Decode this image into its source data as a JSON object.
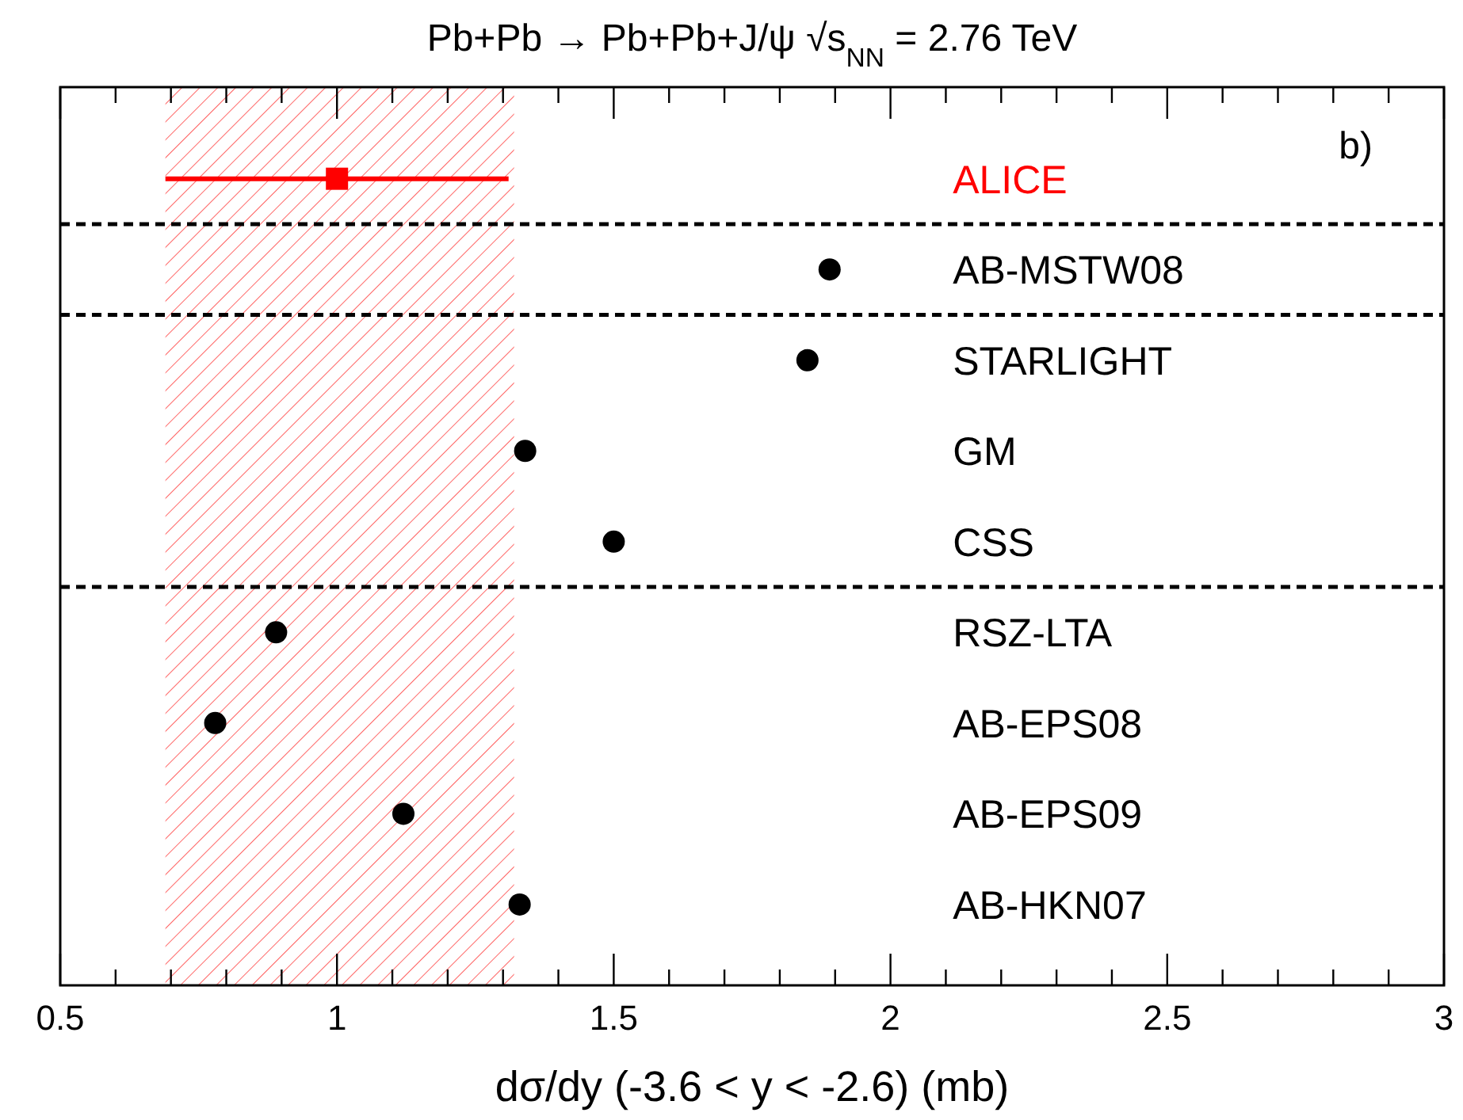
{
  "chart_data": {
    "type": "scatter",
    "orientation": "horizontal",
    "title": "Pb+Pb → Pb+Pb+J/ψ   √s$_{NN}$ = 2.76 TeV",
    "xlabel": "dσ/dy (-3.6 < y < -2.6) (mb)",
    "categories": [
      "ALICE",
      "AB-MSTW08",
      "STARLIGHT",
      "GM",
      "CSS",
      "RSZ-LTA",
      "AB-EPS08",
      "AB-EPS09",
      "AB-HKN07"
    ],
    "series": [
      {
        "color": "#ff0000",
        "marker": "square",
        "values": [
          1.0,
          null,
          null,
          null,
          null,
          null,
          null,
          null,
          null
        ],
        "errors": [
          [
            0.69,
            1.31
          ],
          null,
          null,
          null,
          null,
          null,
          null,
          null,
          null
        ]
      },
      {
        "color": "#000000",
        "marker": "circle",
        "values": [
          null,
          1.89,
          1.85,
          1.34,
          1.5,
          0.89,
          0.78,
          1.12,
          1.33
        ]
      }
    ],
    "xlim": [
      0.5,
      3
    ],
    "xticks": [
      0.5,
      {
        "value": 0.6,
        "label": null
      },
      {
        "value": 0.7,
        "label": null
      },
      {
        "value": 0.8,
        "label": null
      },
      {
        "value": 0.9,
        "label": null
      },
      1,
      {
        "value": 1.1,
        "label": null
      },
      {
        "value": 1.2,
        "label": null
      },
      {
        "value": 1.3,
        "label": null
      },
      {
        "value": 1.4,
        "label": null
      },
      1.5,
      {
        "value": 1.6,
        "label": null
      },
      {
        "value": 1.7,
        "label": null
      },
      {
        "value": 1.8,
        "label": null
      },
      {
        "value": 1.9,
        "label": null
      },
      2,
      {
        "value": 2.1,
        "label": null
      },
      {
        "value": 2.2,
        "label": null
      },
      {
        "value": 2.3,
        "label": null
      },
      {
        "value": 2.4,
        "label": null
      },
      2.5,
      {
        "value": 2.6,
        "label": null
      },
      {
        "value": 2.7,
        "label": null
      },
      {
        "value": 2.8,
        "label": null
      },
      {
        "value": 2.9,
        "label": null
      },
      3
    ],
    "bands": [
      {
        "axis": "x",
        "from": 0.69,
        "to": 1.32,
        "color": "#ff0000"
      }
    ],
    "annotations": [
      "b)"
    ],
    "grid": false
  }
}
